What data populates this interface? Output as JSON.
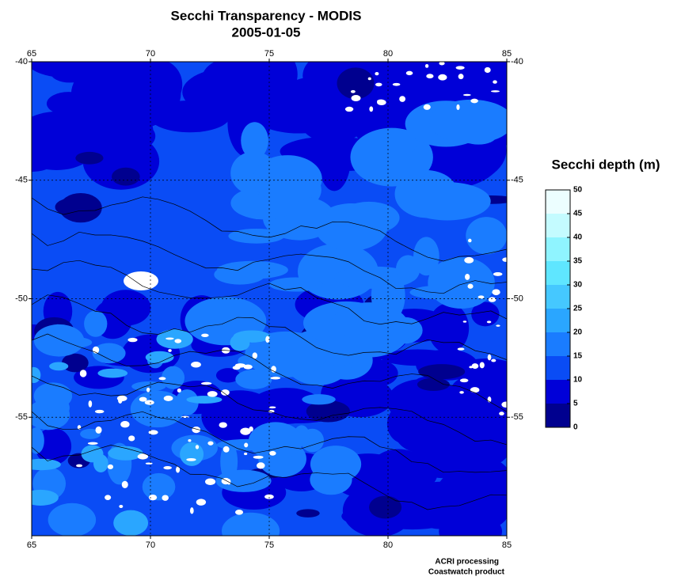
{
  "chart_data": {
    "type": "map",
    "title": "Secchi Transparency - MODIS",
    "subtitle": "2005-01-05",
    "xlim": [
      65,
      85
    ],
    "xticks": [
      65,
      70,
      75,
      80,
      85
    ],
    "ylim": [
      -40,
      -60
    ],
    "yticks": [
      -40,
      -45,
      -50,
      -55
    ],
    "grid": true,
    "colorbar": {
      "label": "Secchi depth (m)",
      "lim": [
        0,
        50
      ],
      "ticks": [
        0,
        5,
        10,
        15,
        20,
        25,
        30,
        35,
        40,
        45,
        50
      ],
      "colors": [
        "#00008f",
        "#0000d8",
        "#0a4cf5",
        "#1a7cff",
        "#2aa6ff",
        "#45c8ff",
        "#5fe6ff",
        "#8ff4ff",
        "#c4fbff",
        "#ecfeff"
      ]
    },
    "credits": [
      "ACRI processing",
      "Coastwatch product"
    ]
  }
}
